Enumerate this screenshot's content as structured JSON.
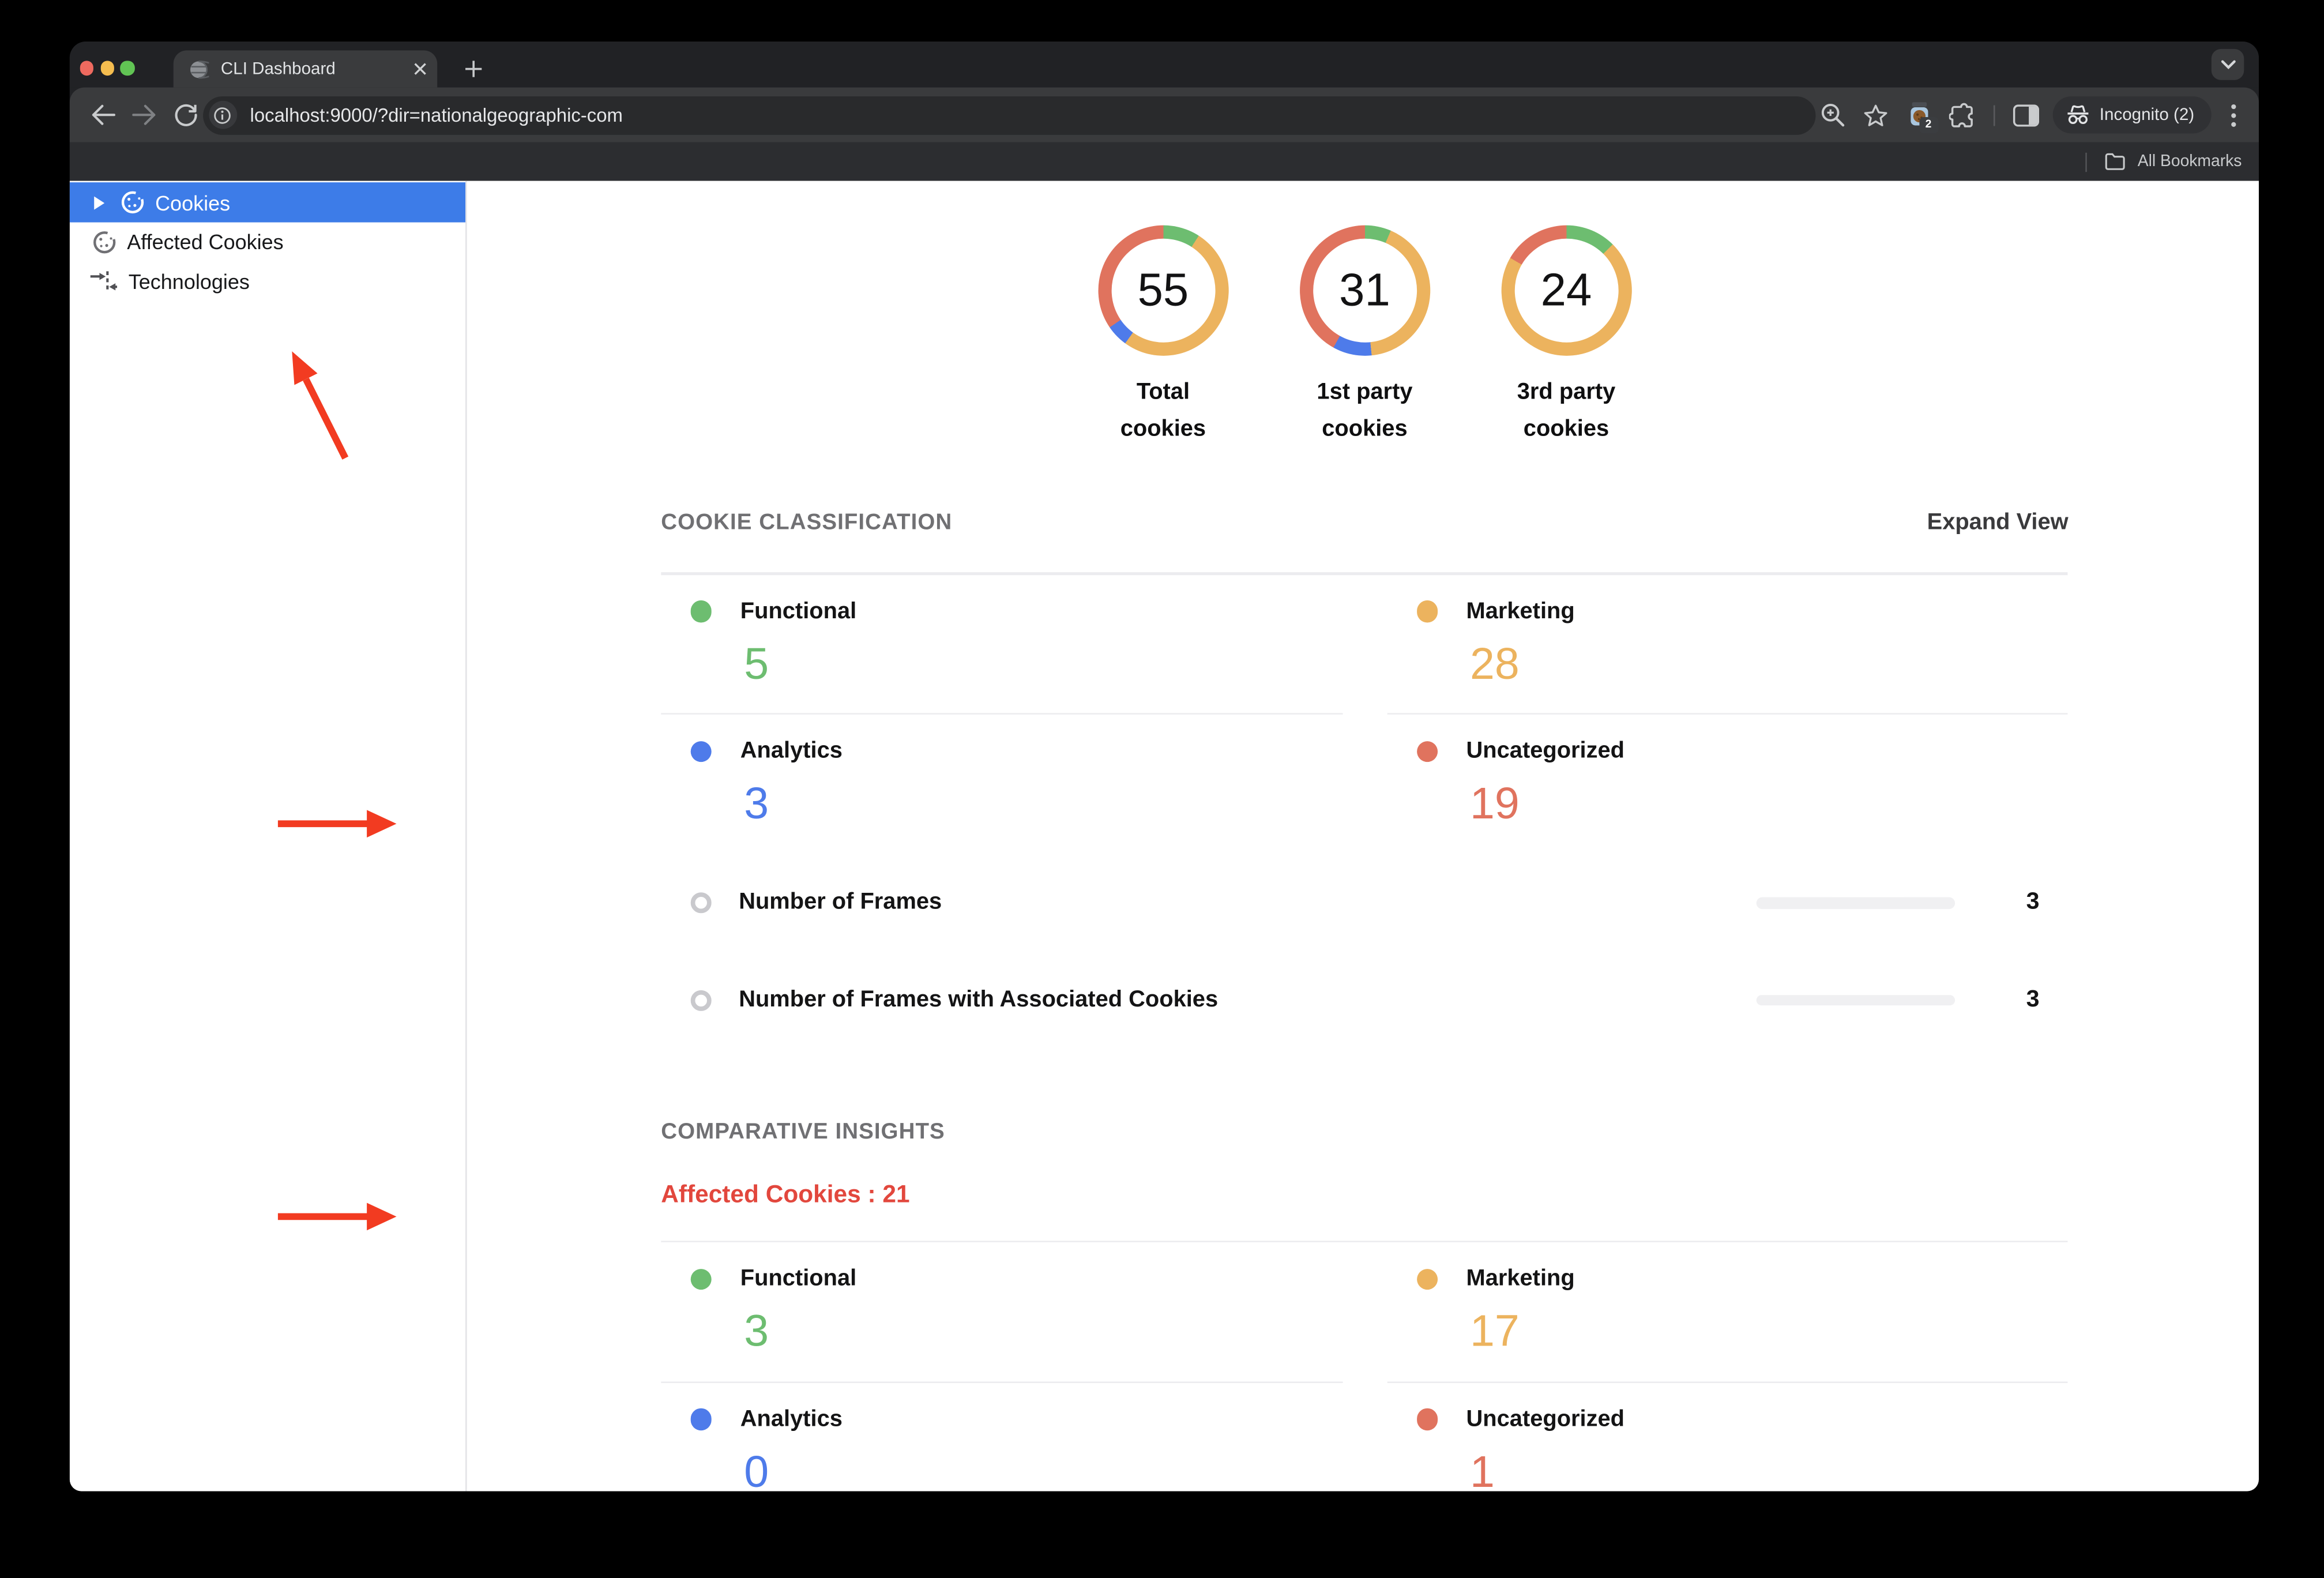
{
  "browser": {
    "tab_title": "CLI Dashboard",
    "url": "localhost:9000/?dir=nationalgeographic-com",
    "incognito_label": "Incognito (2)",
    "extension_badge": "2",
    "all_bookmarks_label": "All Bookmarks"
  },
  "sidebar": {
    "items": [
      {
        "label": "Cookies",
        "selected": true
      },
      {
        "label": "Affected Cookies",
        "selected": false
      },
      {
        "label": "Technologies",
        "selected": false
      }
    ]
  },
  "classification": {
    "heading": "COOKIE CLASSIFICATION",
    "expand_label": "Expand View",
    "rows": [
      {
        "label": "Functional",
        "value": "5",
        "color": "#6dbd70"
      },
      {
        "label": "Marketing",
        "value": "28",
        "color": "#ecb35e"
      },
      {
        "label": "Analytics",
        "value": "3",
        "color": "#4e7bea"
      },
      {
        "label": "Uncategorized",
        "value": "19",
        "color": "#e0735e"
      }
    ],
    "frames": [
      {
        "label": "Number of Frames",
        "value": "3"
      },
      {
        "label": "Number of Frames with Associated Cookies",
        "value": "3"
      }
    ]
  },
  "comparative": {
    "heading": "COMPARATIVE INSIGHTS",
    "affected_label": "Affected Cookies : 21",
    "rows": [
      {
        "label": "Functional",
        "value": "3",
        "color": "#6dbd70"
      },
      {
        "label": "Marketing",
        "value": "17",
        "color": "#ecb35e"
      },
      {
        "label": "Analytics",
        "value": "0",
        "color": "#4e7bea"
      },
      {
        "label": "Uncategorized",
        "value": "1",
        "color": "#e0735e"
      }
    ]
  },
  "chart_data": [
    {
      "type": "donut",
      "title": "Total cookies",
      "label_lines": [
        "Total",
        "cookies"
      ],
      "center_value": "55",
      "segments": [
        {
          "label": "Functional",
          "value": 5,
          "color": "#6dbd70"
        },
        {
          "label": "Marketing",
          "value": 28,
          "color": "#ecb35e"
        },
        {
          "label": "Analytics",
          "value": 3,
          "color": "#4e7bea"
        },
        {
          "label": "Uncategorized",
          "value": 19,
          "color": "#e0735e"
        }
      ]
    },
    {
      "type": "donut",
      "title": "1st party cookies",
      "label_lines": [
        "1st party",
        "cookies"
      ],
      "center_value": "31",
      "segments": [
        {
          "label": "Functional",
          "value": 2,
          "color": "#6dbd70"
        },
        {
          "label": "Marketing",
          "value": 13,
          "color": "#ecb35e"
        },
        {
          "label": "Analytics",
          "value": 3,
          "color": "#4e7bea"
        },
        {
          "label": "Uncategorized",
          "value": 13,
          "color": "#e0735e"
        }
      ]
    },
    {
      "type": "donut",
      "title": "3rd party cookies",
      "label_lines": [
        "3rd party",
        "cookies"
      ],
      "center_value": "24",
      "segments": [
        {
          "label": "Functional",
          "value": 3,
          "color": "#6dbd70"
        },
        {
          "label": "Marketing",
          "value": 17,
          "color": "#ecb35e"
        },
        {
          "label": "Analytics",
          "value": 0,
          "color": "#4e7bea"
        },
        {
          "label": "Uncategorized",
          "value": 4,
          "color": "#e0735e"
        }
      ]
    }
  ],
  "colors": {
    "selected_blue": "#3d7ce8",
    "functional_green": "#6dbd70",
    "marketing_orange": "#ecb35e",
    "analytics_blue": "#4e7bea",
    "uncategorized_red": "#e0735e",
    "affected_red": "#e2473d",
    "arrow_red": "#f23b21"
  }
}
